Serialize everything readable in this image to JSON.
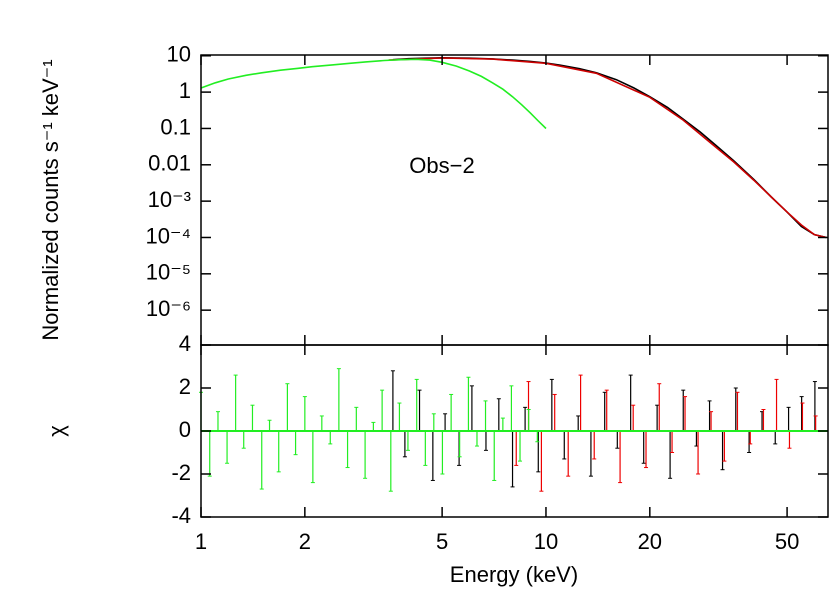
{
  "chart_data": [
    {
      "type": "line",
      "ylabel": "Normalized counts s⁻¹ keV⁻¹",
      "annotation": "Obs−2",
      "xlog": true,
      "ylog": true,
      "xlim": [
        1,
        65.7
      ],
      "ylim": [
        1.1e-07,
        10.5
      ],
      "xticks": [
        1,
        2,
        5,
        10,
        20,
        50
      ],
      "yticks": [
        10,
        1,
        0.1,
        0.01,
        {
          "value": 0.001,
          "label": "10⁻³"
        },
        {
          "value": 0.0001,
          "label": "10⁻⁴"
        },
        {
          "value": 1e-05,
          "label": "10⁻⁵"
        },
        {
          "value": 1e-06,
          "label": "10⁻⁶"
        }
      ],
      "series": [
        {
          "color": "#000000",
          "x": [
            3.6,
            4,
            4.5,
            5,
            6,
            7,
            8,
            9,
            10,
            11,
            12.5,
            14,
            16,
            18,
            20,
            22.5,
            25,
            28,
            31,
            35,
            40,
            45,
            50,
            55,
            60,
            65
          ],
          "values": [
            7.8,
            8.3,
            8.6,
            8.8,
            8.6,
            8.2,
            7.6,
            7.0,
            6.3,
            5.5,
            4.4,
            3.4,
            2.2,
            1.3,
            0.75,
            0.38,
            0.18,
            0.08,
            0.035,
            0.013,
            0.004,
            0.0013,
            0.0005,
            0.0002,
            0.00012,
            0.0001
          ]
        },
        {
          "color": "#cc0000",
          "x": [
            3.5,
            5,
            7,
            10,
            14,
            20,
            25,
            30,
            35,
            40,
            45,
            50,
            55,
            60,
            65
          ],
          "values": [
            7.6,
            8.7,
            8.1,
            6.2,
            3.3,
            0.72,
            0.17,
            0.04,
            0.012,
            0.0038,
            0.0013,
            0.0005,
            0.00022,
            0.00012,
            0.0001
          ]
        },
        {
          "color": "#22ee22",
          "x": [
            1,
            1.1,
            1.2,
            1.35,
            1.5,
            1.7,
            1.9,
            2.1,
            2.4,
            2.7,
            3,
            3.4,
            3.8,
            4.2,
            4.6,
            5,
            5.5,
            6,
            6.5,
            7,
            7.5,
            8,
            8.5,
            9,
            9.5,
            10
          ],
          "values": [
            1.3,
            1.8,
            2.3,
            2.9,
            3.4,
            4.0,
            4.5,
            5.0,
            5.6,
            6.2,
            6.8,
            7.4,
            7.8,
            8.0,
            7.6,
            6.6,
            5.2,
            3.8,
            2.7,
            1.8,
            1.2,
            0.75,
            0.45,
            0.27,
            0.16,
            0.1
          ]
        }
      ]
    },
    {
      "type": "residual",
      "ylabel": "χ",
      "xlabel": "Energy (keV)",
      "xlog": true,
      "xlim": [
        1,
        65.7
      ],
      "ylim": [
        -4,
        4
      ],
      "xticks": [
        1,
        2,
        5,
        10,
        20,
        50
      ],
      "yticks": [
        -4,
        -2,
        0,
        2,
        4
      ],
      "zero_line_color": "#22ee22",
      "series": [
        {
          "color": "#000000",
          "x": [
            3.6,
            3.9,
            4.3,
            4.7,
            5.1,
            5.6,
            6.1,
            6.7,
            7.3,
            8.0,
            8.7,
            9.5,
            10.4,
            11.3,
            12.4,
            13.5,
            14.8,
            16.1,
            17.6,
            19.2,
            21,
            22.9,
            25,
            27.3,
            29.8,
            32.5,
            35.5,
            38.8,
            42.3,
            46.2,
            50.5,
            55.1,
            60.2
          ],
          "values": [
            2.8,
            -1.2,
            1.9,
            -2.3,
            0.8,
            -1.6,
            2.1,
            -0.9,
            1.5,
            -2.6,
            1.1,
            -1.9,
            2.4,
            -1.3,
            0.7,
            -2.1,
            1.8,
            -0.8,
            2.6,
            -1.5,
            1.2,
            -2.2,
            1.9,
            -0.7,
            1.4,
            -1.8,
            2.0,
            -1.0,
            0.9,
            -0.6,
            1.1,
            1.6,
            2.3
          ]
        },
        {
          "color": "#ee0000",
          "x": [
            8.2,
            8.9,
            9.7,
            10.6,
            11.6,
            12.6,
            13.8,
            15,
            16.4,
            17.9,
            19.5,
            21.3,
            23.2,
            25.3,
            27.6,
            30.1,
            32.9,
            35.9,
            39.1,
            42.7,
            46.6,
            50.8,
            55.4,
            60.5
          ],
          "values": [
            -1.6,
            2.3,
            -2.8,
            1.7,
            -2.1,
            2.6,
            -1.3,
            1.9,
            -2.4,
            1.2,
            -1.7,
            2.2,
            -1.0,
            1.6,
            -2.0,
            0.9,
            -1.4,
            1.8,
            -0.6,
            1.0,
            2.4,
            -0.8,
            1.3,
            0.7
          ]
        },
        {
          "color": "#22ee22",
          "x": [
            1.0,
            1.06,
            1.12,
            1.19,
            1.26,
            1.33,
            1.41,
            1.5,
            1.58,
            1.68,
            1.78,
            1.88,
            2.0,
            2.11,
            2.24,
            2.37,
            2.51,
            2.66,
            2.82,
            2.99,
            3.16,
            3.35,
            3.55,
            3.76,
            3.98,
            4.22,
            4.47,
            4.73,
            5.01,
            5.31,
            5.62,
            5.96,
            6.31,
            6.68,
            7.08,
            7.5,
            7.94,
            8.41,
            8.91,
            9.44
          ],
          "values": [
            1.8,
            -2.1,
            0.9,
            -1.5,
            2.6,
            -0.8,
            1.2,
            -2.7,
            0.5,
            -1.9,
            2.2,
            -1.1,
            1.6,
            -2.4,
            0.7,
            -0.6,
            2.9,
            -1.7,
            1.1,
            -2.2,
            0.4,
            1.9,
            -2.8,
            1.3,
            -0.9,
            2.4,
            -1.6,
            0.8,
            -2.0,
            1.7,
            -1.2,
            2.5,
            -0.7,
            1.4,
            -2.3,
            0.6,
            2.1,
            -1.4,
            1.0,
            -0.5
          ]
        }
      ]
    }
  ]
}
